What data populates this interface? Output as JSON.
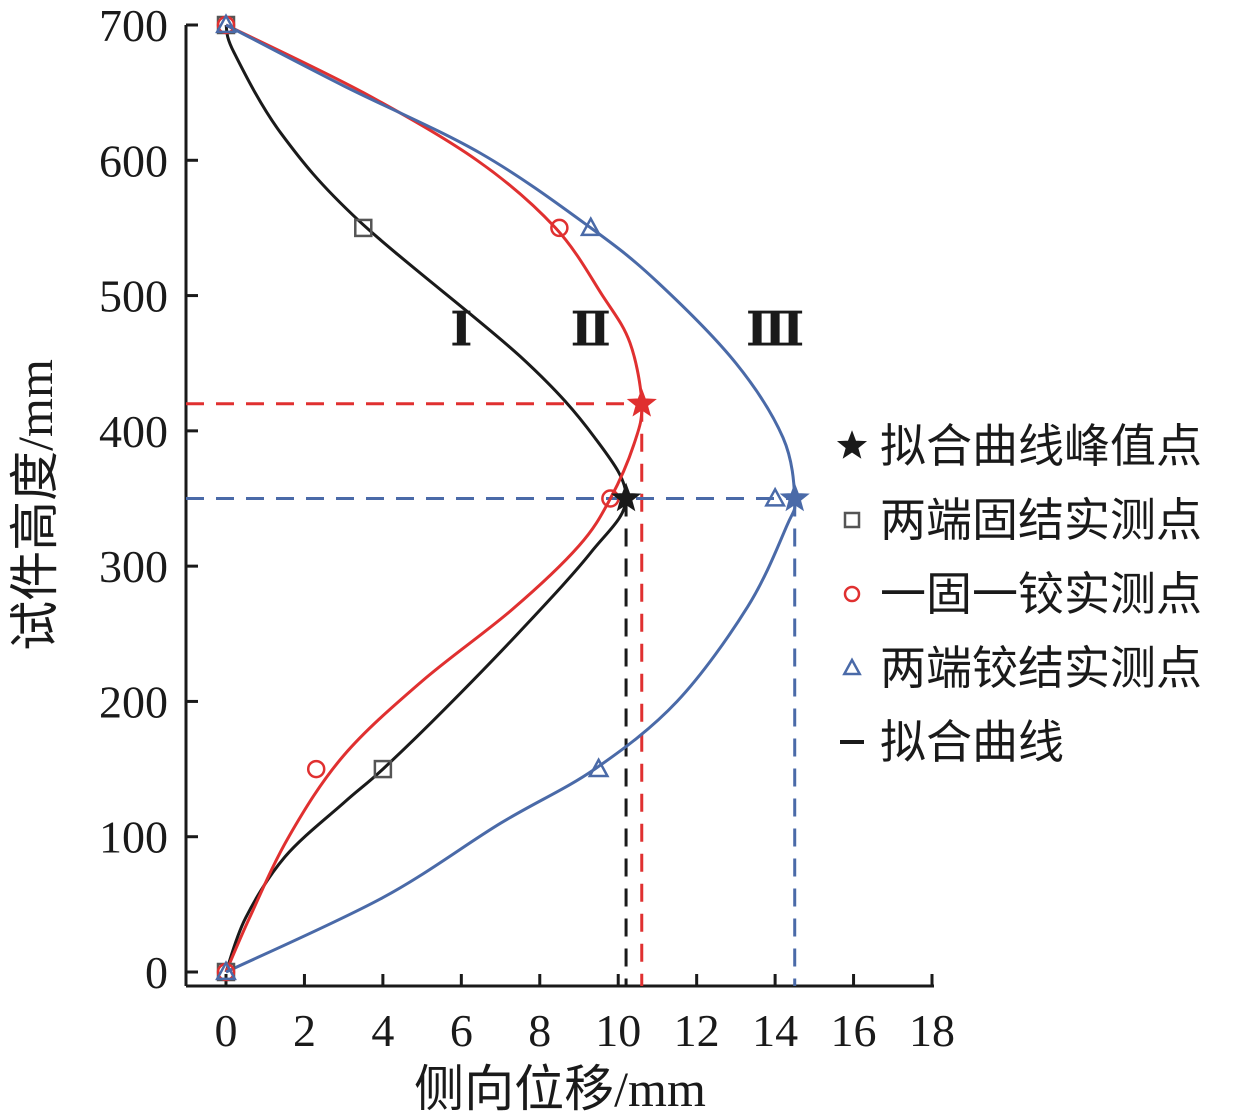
{
  "chart_data": {
    "type": "line",
    "xlabel": "侧向位移/mm",
    "ylabel": "试件高度/mm",
    "xlim": [
      0,
      18
    ],
    "ylim": [
      0,
      700
    ],
    "x_ticks": [
      0,
      2,
      4,
      6,
      8,
      10,
      12,
      14,
      16,
      18
    ],
    "y_ticks": [
      0,
      100,
      200,
      300,
      400,
      500,
      600,
      700
    ],
    "grid": false,
    "legend_position": "right",
    "colors": {
      "black": "#1a1a1a",
      "red": "#e03030",
      "blue": "#4a6aa8",
      "gray": "#555555"
    },
    "curve_labels": [
      {
        "text": "Ⅰ",
        "x": 6.0,
        "y": 475,
        "color": "#1a1a1a"
      },
      {
        "text": "Ⅱ",
        "x": 9.3,
        "y": 475,
        "color": "#1a1a1a"
      },
      {
        "text": "Ⅲ",
        "x": 14.0,
        "y": 475,
        "color": "#1a1a1a"
      }
    ],
    "fitted_curves": [
      {
        "color": "#1a1a1a",
        "points": [
          [
            0,
            0
          ],
          [
            0.5,
            40
          ],
          [
            1.5,
            85
          ],
          [
            3.0,
            125
          ],
          [
            4.0,
            150
          ],
          [
            5.6,
            195
          ],
          [
            7.6,
            255
          ],
          [
            9.3,
            310
          ],
          [
            10.2,
            350
          ],
          [
            9.4,
            395
          ],
          [
            7.5,
            455
          ],
          [
            3.4,
            555
          ],
          [
            1.4,
            620
          ],
          [
            0.2,
            680
          ],
          [
            0,
            700
          ]
        ]
      },
      {
        "color": "#e03030",
        "points": [
          [
            0,
            0
          ],
          [
            0.6,
            40
          ],
          [
            1.6,
            100
          ],
          [
            3.0,
            160
          ],
          [
            5.0,
            215
          ],
          [
            7.3,
            268
          ],
          [
            9.0,
            315
          ],
          [
            9.8,
            350
          ],
          [
            10.4,
            390
          ],
          [
            10.6,
            420
          ],
          [
            10.3,
            465
          ],
          [
            9.6,
            500
          ],
          [
            8.4,
            550
          ],
          [
            6.4,
            600
          ],
          [
            3.5,
            650
          ],
          [
            0,
            700
          ]
        ]
      },
      {
        "color": "#4a6aa8",
        "points": [
          [
            0,
            0
          ],
          [
            4,
            55
          ],
          [
            7,
            110
          ],
          [
            9.4,
            150
          ],
          [
            11.5,
            200
          ],
          [
            13.3,
            270
          ],
          [
            14.3,
            330
          ],
          [
            14.5,
            350
          ],
          [
            14.2,
            395
          ],
          [
            13.0,
            450
          ],
          [
            11.0,
            510
          ],
          [
            9.3,
            550
          ],
          [
            6.5,
            605
          ],
          [
            3.0,
            655
          ],
          [
            0,
            700
          ]
        ]
      }
    ],
    "measured_series": [
      {
        "name": "两端固结实测点",
        "marker": "square",
        "color": "#555555",
        "points": [
          [
            0,
            0
          ],
          [
            4.0,
            150
          ],
          [
            3.5,
            550
          ],
          [
            0,
            700
          ]
        ]
      },
      {
        "name": "一固一铰实测点",
        "marker": "circle",
        "color": "#e03030",
        "points": [
          [
            0,
            0
          ],
          [
            2.3,
            150
          ],
          [
            9.8,
            350
          ],
          [
            8.5,
            550
          ],
          [
            0,
            700
          ]
        ]
      },
      {
        "name": "两端铰结实测点",
        "marker": "triangle",
        "color": "#4a6aa8",
        "points": [
          [
            0,
            0
          ],
          [
            9.5,
            150
          ],
          [
            14.0,
            350
          ],
          [
            9.3,
            550
          ],
          [
            0,
            700
          ]
        ]
      }
    ],
    "peak_points": [
      {
        "x": 10.2,
        "y": 350,
        "color": "#1a1a1a"
      },
      {
        "x": 10.6,
        "y": 420,
        "color": "#e03030"
      },
      {
        "x": 14.5,
        "y": 350,
        "color": "#4a6aa8"
      }
    ],
    "reference_lines": [
      {
        "color": "#1a1a1a",
        "x": 10.2,
        "y": 350,
        "horizontal": false
      },
      {
        "color": "#e03030",
        "x": 10.6,
        "y": 420,
        "horizontal": true
      },
      {
        "color": "#4a6aa8",
        "x": 14.5,
        "y": 350,
        "horizontal": true
      }
    ],
    "legend": [
      {
        "label": "拟合曲线峰值点",
        "symbol": "star",
        "color": "#1a1a1a"
      },
      {
        "label": "两端固结实测点",
        "symbol": "square",
        "color": "#555555"
      },
      {
        "label": "一固一铰实测点",
        "symbol": "circle",
        "color": "#e03030"
      },
      {
        "label": "两端铰结实测点",
        "symbol": "triangle",
        "color": "#4a6aa8"
      },
      {
        "label": "拟合曲线",
        "symbol": "line",
        "color": "#1a1a1a"
      }
    ]
  }
}
